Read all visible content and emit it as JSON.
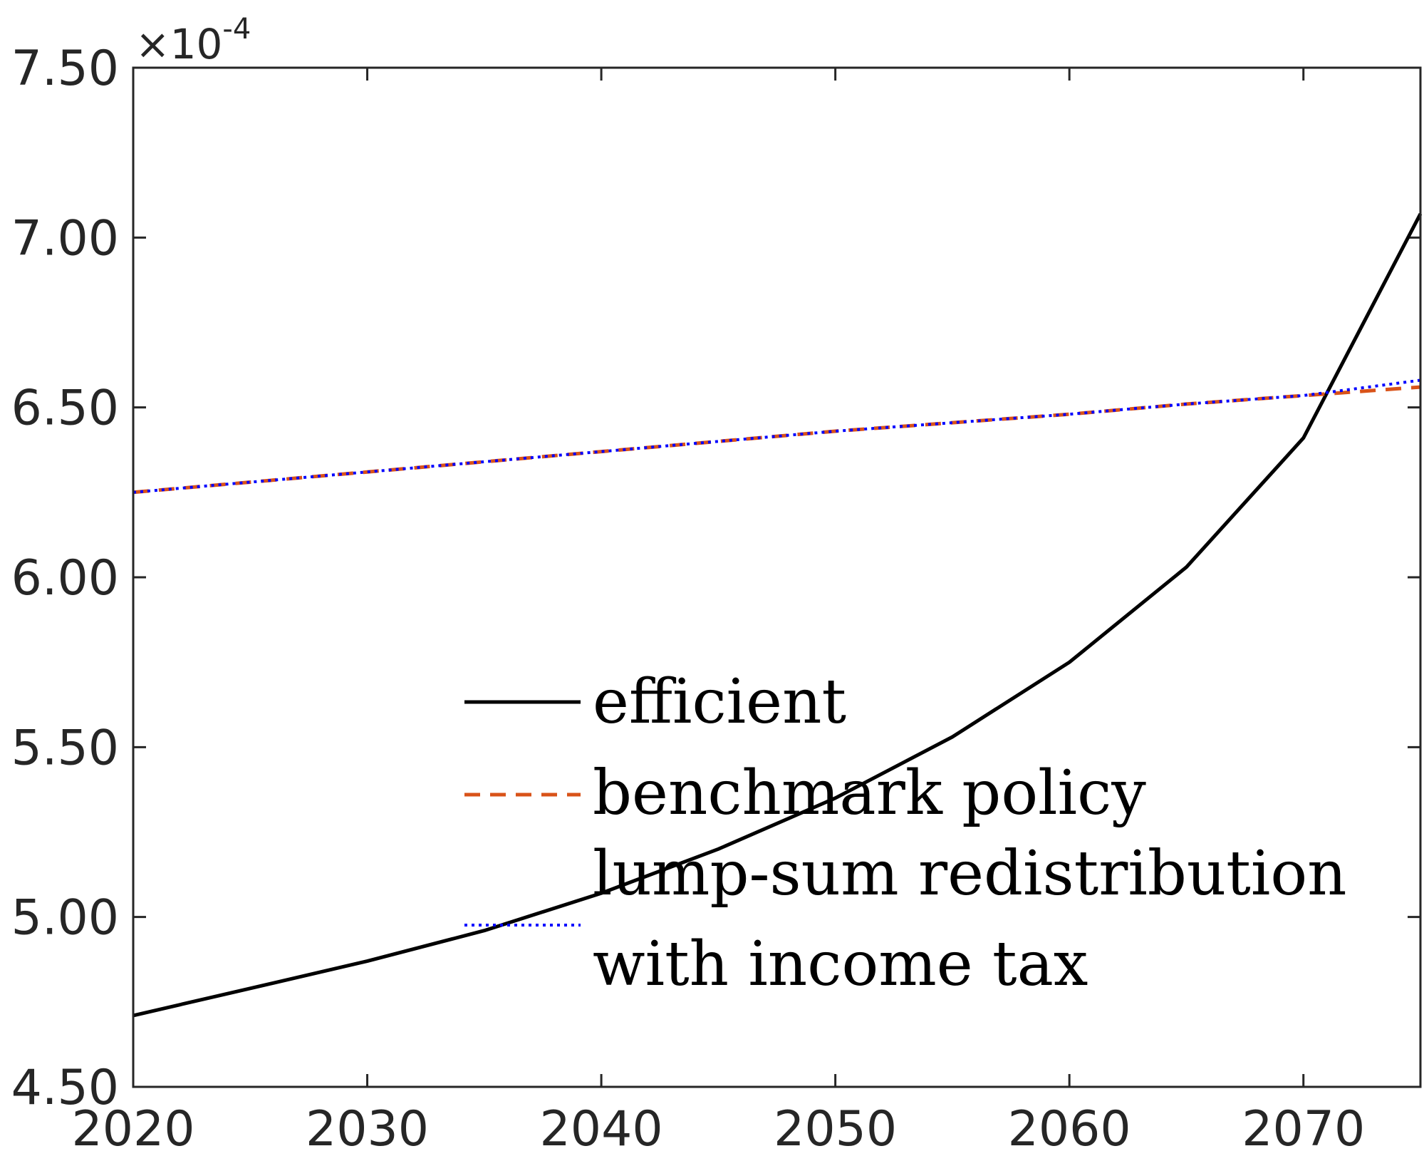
{
  "chart_data": {
    "type": "line",
    "title": "",
    "xlabel": "",
    "ylabel": "",
    "xlim": [
      2020,
      2075
    ],
    "ylim": [
      4.5,
      7.5
    ],
    "y_multiplier": "×10",
    "y_multiplier_exponent": "-4",
    "xticks": [
      2020,
      2030,
      2040,
      2050,
      2060,
      2070
    ],
    "xtick_labels": [
      "2020",
      "2030",
      "2040",
      "2050",
      "2060",
      "2070"
    ],
    "yticks": [
      4.5,
      5.0,
      5.5,
      6.0,
      6.5,
      7.0,
      7.5
    ],
    "ytick_labels": [
      "4.50",
      "5.00",
      "5.50",
      "6.00",
      "6.50",
      "7.00",
      "7.50"
    ],
    "grid": false,
    "legend_position": "center-bottom",
    "series": [
      {
        "name": "efficient",
        "color": "#000000",
        "style": "solid",
        "x": [
          2020,
          2025,
          2030,
          2035,
          2040,
          2045,
          2050,
          2055,
          2060,
          2065,
          2070,
          2075
        ],
        "y": [
          4.71,
          4.79,
          4.87,
          4.96,
          5.07,
          5.2,
          5.35,
          5.53,
          5.75,
          6.03,
          6.41,
          7.07
        ]
      },
      {
        "name": "benchmark policy",
        "color": "#d95319",
        "style": "dashed",
        "x": [
          2020,
          2025,
          2030,
          2035,
          2040,
          2045,
          2050,
          2055,
          2060,
          2065,
          2070,
          2075
        ],
        "y": [
          6.25,
          6.28,
          6.31,
          6.34,
          6.37,
          6.4,
          6.43,
          6.455,
          6.48,
          6.51,
          6.535,
          6.56
        ]
      },
      {
        "name": "lump-sum redistribution",
        "name_line2": "with income tax",
        "color": "#0000ff",
        "style": "dotted",
        "x": [
          2020,
          2025,
          2030,
          2035,
          2040,
          2045,
          2050,
          2055,
          2060,
          2065,
          2070,
          2075
        ],
        "y": [
          6.25,
          6.28,
          6.31,
          6.34,
          6.37,
          6.4,
          6.43,
          6.455,
          6.48,
          6.51,
          6.535,
          6.58
        ]
      }
    ]
  }
}
